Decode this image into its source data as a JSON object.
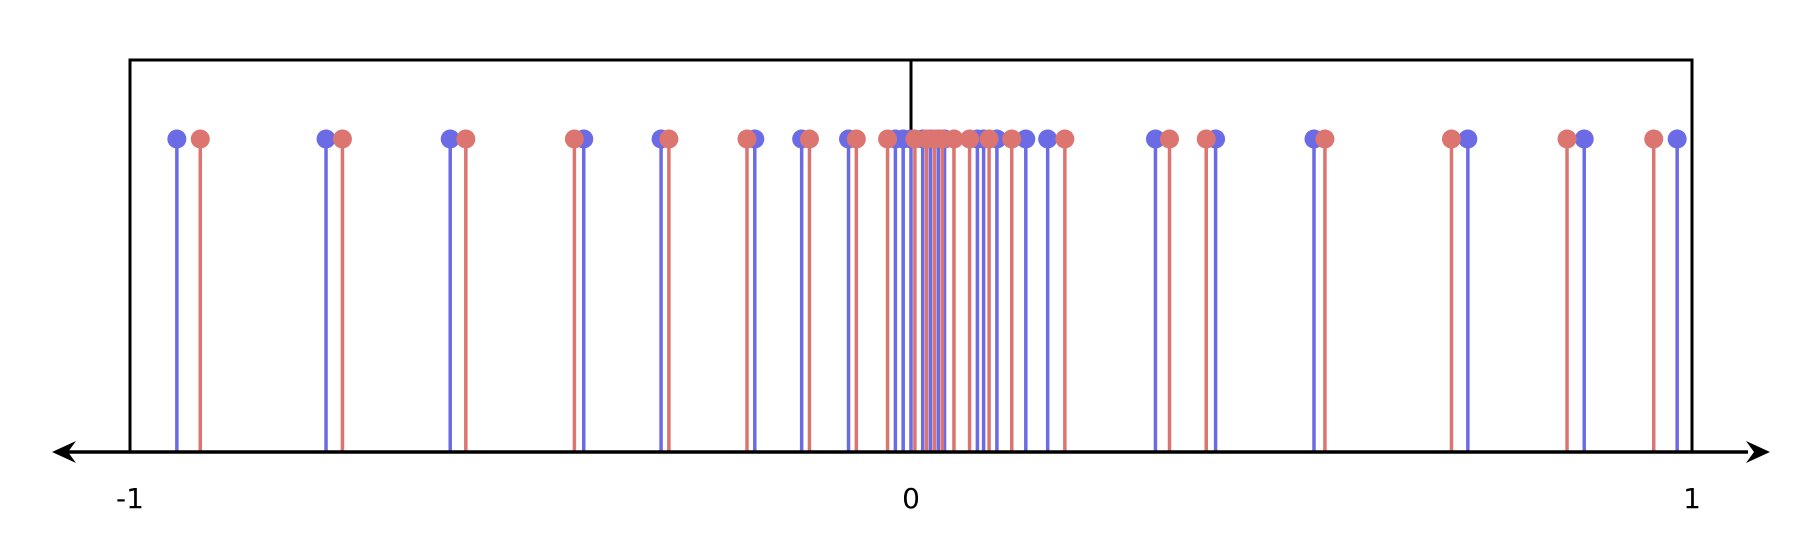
{
  "chart_data": {
    "type": "stem",
    "xlim": [
      -1,
      1
    ],
    "tick_labels": [
      "-1",
      "0",
      "1"
    ],
    "box": {
      "x_range": [
        -1,
        1
      ]
    },
    "colors": {
      "blue": "#6b6be6",
      "red": "#dc7470",
      "axis": "#000000"
    },
    "series": [
      {
        "color_key": "blue",
        "x": [
          -0.94,
          -0.749,
          -0.59,
          -0.419,
          -0.32,
          -0.2,
          -0.14,
          -0.08,
          -0.02,
          -0.01,
          0.0,
          0.015,
          0.025,
          0.035,
          0.043,
          0.085,
          0.093,
          0.11,
          0.147,
          0.175,
          0.313,
          0.39,
          0.516,
          0.713,
          0.862,
          0.981
        ]
      },
      {
        "color_key": "red",
        "x": [
          -0.91,
          -0.728,
          -0.57,
          -0.431,
          -0.31,
          -0.21,
          -0.13,
          -0.07,
          -0.03,
          0.005,
          0.02,
          0.03,
          0.04,
          0.055,
          0.075,
          0.1,
          0.129,
          0.197,
          0.331,
          0.378,
          0.53,
          0.692,
          0.84,
          0.951
        ]
      }
    ]
  }
}
